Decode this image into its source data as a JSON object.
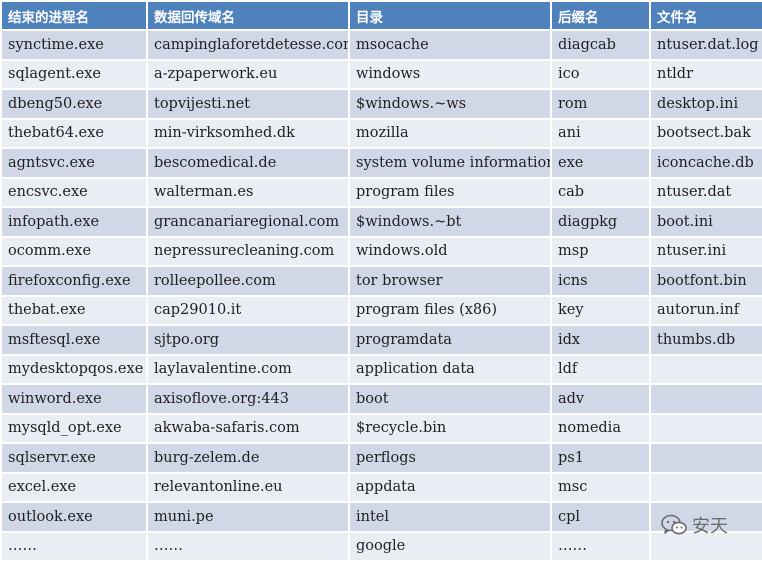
{
  "table": {
    "headers": [
      "结束的进程名",
      "数据回传域名",
      "目录",
      "后缀名",
      "文件名"
    ],
    "rows": [
      [
        "synctime.exe",
        "campinglaforetdetesse.com",
        "msocache",
        "diagcab",
        "ntuser.dat.log"
      ],
      [
        "sqlagent.exe",
        "a-zpaperwork.eu",
        "windows",
        "ico",
        "ntldr"
      ],
      [
        "dbeng50.exe",
        "topvijesti.net",
        "$windows.~ws",
        "rom",
        "desktop.ini"
      ],
      [
        "thebat64.exe",
        "min-virksomhed.dk",
        "mozilla",
        "ani",
        "bootsect.bak"
      ],
      [
        "agntsvc.exe",
        "bescomedical.de",
        "system volume information",
        "exe",
        "iconcache.db"
      ],
      [
        "encsvc.exe",
        "walterman.es",
        "program files",
        "cab",
        "ntuser.dat"
      ],
      [
        "infopath.exe",
        "grancanariaregional.com",
        "$windows.~bt",
        "diagpkg",
        "boot.ini"
      ],
      [
        "ocomm.exe",
        "nepressurecleaning.com",
        "windows.old",
        "msp",
        "ntuser.ini"
      ],
      [
        "firefoxconfig.exe",
        "rolleepollee.com",
        "tor browser",
        "icns",
        "bootfont.bin"
      ],
      [
        "thebat.exe",
        "cap29010.it",
        "program files (x86)",
        "key",
        "autorun.inf"
      ],
      [
        "msftesql.exe",
        "sjtpo.org",
        "programdata",
        "idx",
        "thumbs.db"
      ],
      [
        "mydesktopqos.exe",
        "laylavalentine.com",
        "application data",
        "ldf",
        ""
      ],
      [
        "winword.exe",
        "axisoflove.org:443",
        "boot",
        "adv",
        ""
      ],
      [
        "mysqld_opt.exe",
        "akwaba-safaris.com",
        "$recycle.bin",
        "nomedia",
        ""
      ],
      [
        "sqlservr.exe",
        "burg-zelem.de",
        "perflogs",
        "ps1",
        ""
      ],
      [
        "excel.exe",
        "relevantonline.eu",
        "appdata",
        "msc",
        ""
      ],
      [
        "outlook.exe",
        "muni.pe",
        "intel",
        "cpl",
        ""
      ],
      [
        "……",
        "……",
        "google",
        "……",
        ""
      ]
    ]
  },
  "watermark": {
    "icon": "wechat-icon",
    "text": "安天"
  },
  "colors": {
    "header_bg": "#4f81bd",
    "row_odd_bg": "#d0d8e8",
    "row_even_bg": "#e9edf4"
  }
}
